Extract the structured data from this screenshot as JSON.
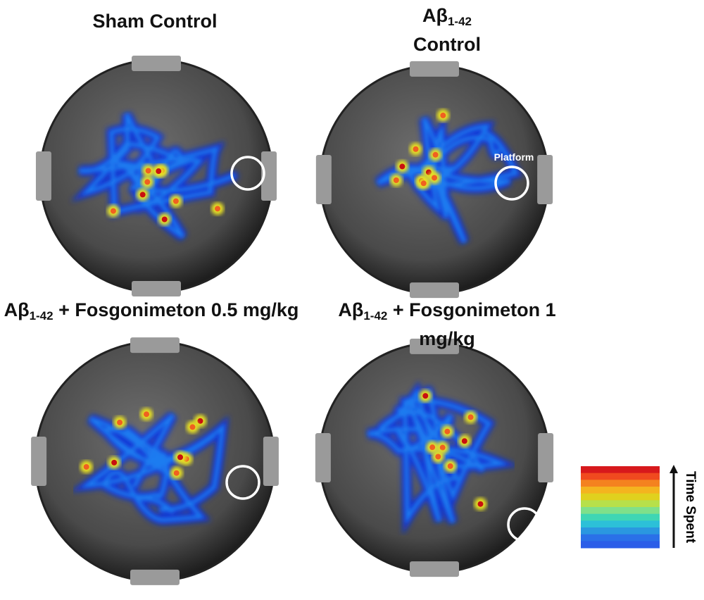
{
  "panels": [
    {
      "title": {
        "main": "Sham Control"
      }
    },
    {
      "title": {
        "main": "Aβ",
        "sub": "1-42",
        "after": "Control"
      },
      "platform_label": "Platform"
    },
    {
      "title": {
        "main": "Aβ",
        "sub": "1-42",
        "after": " + Fosgonimeton 0.5 mg/kg"
      }
    },
    {
      "title": {
        "main": "Aβ",
        "sub": "1-42",
        "after": " + Fosgonimeton 1 mg/kg"
      }
    }
  ],
  "legend": {
    "label": "Time Spent",
    "colors": [
      "#d7191c",
      "#f04a1f",
      "#f4821f",
      "#f4b41f",
      "#e0d11e",
      "#b7e04a",
      "#7fe08a",
      "#3fd6b4",
      "#2cc0d8",
      "#2a97e0",
      "#2a70e8",
      "#2b5de8"
    ]
  }
}
